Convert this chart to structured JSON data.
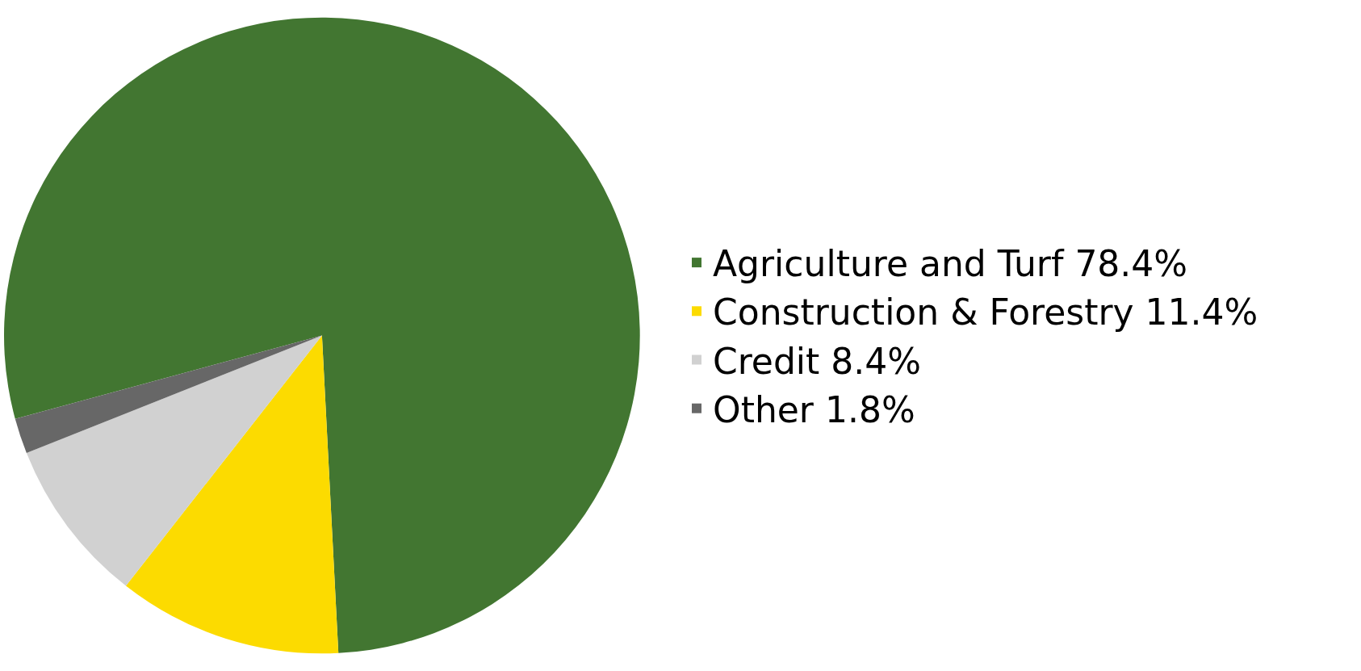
{
  "chart_data": {
    "type": "pie",
    "categories": [
      "Agriculture and Turf",
      "Construction & Forestry",
      "Credit",
      "Other"
    ],
    "values": [
      78.4,
      11.4,
      8.4,
      1.8
    ],
    "value_labels": [
      "78.4%",
      "11.4%",
      "8.4%",
      "1.8%"
    ],
    "colors": [
      "#427631",
      "#fcdb00",
      "#d1d1d1",
      "#676767"
    ],
    "legend": "right"
  }
}
